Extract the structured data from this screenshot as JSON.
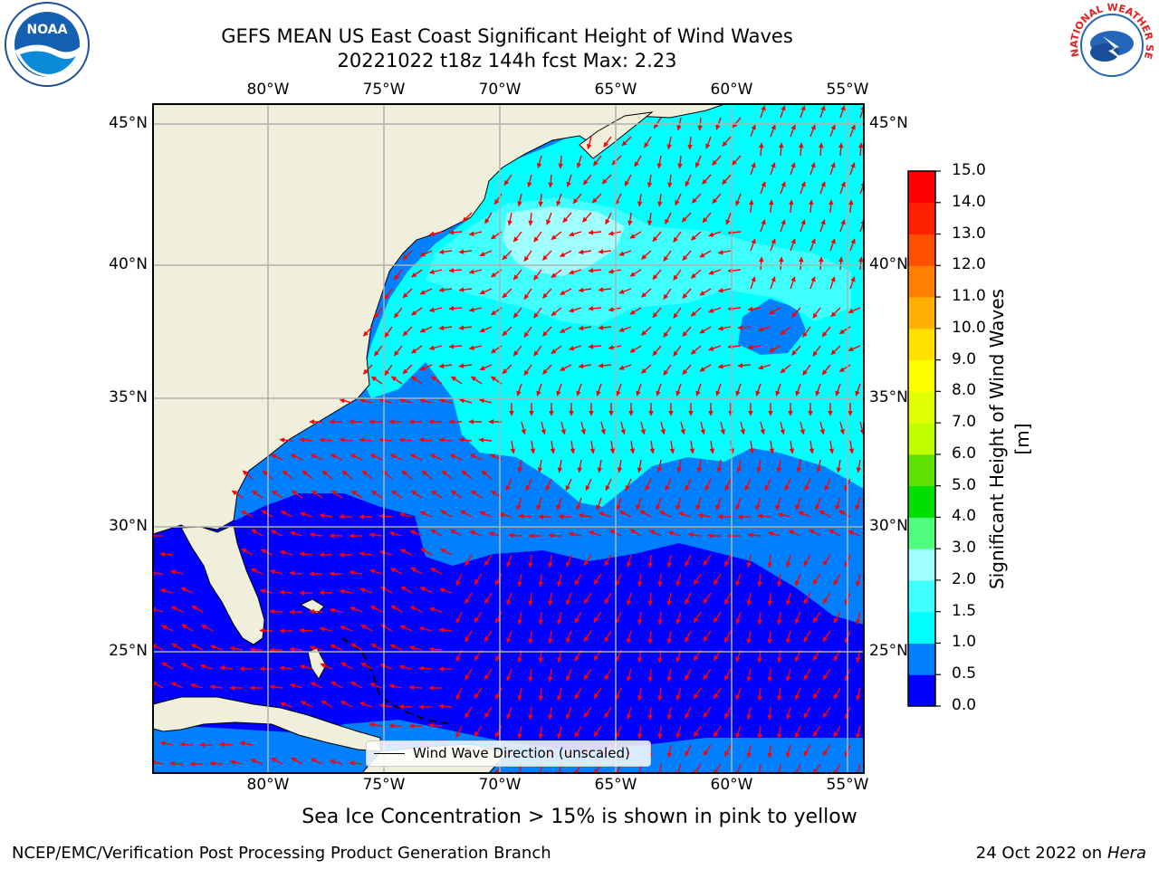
{
  "title": {
    "line1": "GEFS MEAN US East Coast Significant Height of Wind Waves",
    "line2": "20221022 t18z 144h fcst   Max: 2.23"
  },
  "logos": {
    "left": {
      "icon": "noaa-logo-icon",
      "text": "NOAA"
    },
    "right": {
      "icon": "nws-logo-icon",
      "text": "NATIONAL WEATHER SERVICE"
    }
  },
  "map": {
    "lon_labels": [
      "80°W",
      "75°W",
      "70°W",
      "65°W",
      "60°W",
      "55°W"
    ],
    "lat_labels": [
      "45°N",
      "40°N",
      "35°N",
      "30°N",
      "25°N"
    ],
    "legend_label": "Wind Wave Direction (unscaled)"
  },
  "colorbar": {
    "title": "Significant Height of Wind Waves [m]",
    "ticks": [
      "0.0",
      "0.5",
      "1.0",
      "1.5",
      "2.0",
      "3.0",
      "4.0",
      "5.0",
      "6.0",
      "7.0",
      "8.0",
      "9.0",
      "10.0",
      "11.0",
      "12.0",
      "13.0",
      "14.0",
      "15.0"
    ],
    "colors": [
      "#0000ff",
      "#0080ff",
      "#00ffff",
      "#40ffff",
      "#a0ffff",
      "#50ff80",
      "#00e000",
      "#60e000",
      "#c0ff00",
      "#e0ff00",
      "#ffff00",
      "#ffe000",
      "#ffb000",
      "#ff8000",
      "#ff5000",
      "#ff2000",
      "#ff0000"
    ]
  },
  "caption": "Sea Ice Concentration > 15% is shown in pink to yellow",
  "footer": {
    "left": "NCEP/EMC/Verification Post Processing Product Generation Branch",
    "right_date": "24 Oct 2022 on",
    "right_machine": "Hera"
  }
}
